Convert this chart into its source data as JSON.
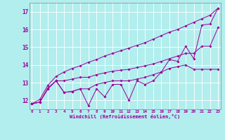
{
  "xlabel": "Windchill (Refroidissement éolien,°C)",
  "background_color": "#b2eeee",
  "grid_color": "#ffffff",
  "line_color": "#990099",
  "x_values": [
    0,
    1,
    2,
    3,
    4,
    5,
    6,
    7,
    8,
    9,
    10,
    11,
    12,
    13,
    14,
    15,
    16,
    17,
    18,
    19,
    20,
    21,
    22,
    23
  ],
  "line1": [
    11.8,
    11.9,
    12.65,
    13.1,
    12.45,
    12.5,
    12.65,
    11.7,
    12.65,
    12.2,
    12.9,
    12.9,
    12.0,
    13.1,
    12.9,
    13.1,
    13.6,
    14.3,
    14.2,
    15.05,
    14.35,
    16.25,
    16.3,
    17.2
  ],
  "line2": [
    11.8,
    11.9,
    12.65,
    13.1,
    12.45,
    12.5,
    12.65,
    12.65,
    12.9,
    13.0,
    13.1,
    13.1,
    13.1,
    13.2,
    13.3,
    13.45,
    13.6,
    13.8,
    13.9,
    14.0,
    13.75,
    13.75,
    13.75,
    13.75
  ],
  "line3": [
    11.8,
    11.9,
    12.7,
    13.1,
    13.1,
    13.2,
    13.3,
    13.3,
    13.45,
    13.55,
    13.65,
    13.7,
    13.75,
    13.85,
    13.95,
    14.05,
    14.2,
    14.35,
    14.5,
    14.65,
    14.65,
    15.05,
    15.05,
    16.1
  ],
  "line4": [
    11.8,
    12.05,
    12.85,
    13.35,
    13.6,
    13.8,
    13.95,
    14.15,
    14.3,
    14.5,
    14.65,
    14.8,
    14.95,
    15.1,
    15.25,
    15.45,
    15.65,
    15.85,
    16.0,
    16.2,
    16.4,
    16.6,
    16.8,
    17.2
  ],
  "ylim": [
    11.5,
    17.5
  ],
  "yticks": [
    12,
    13,
    14,
    15,
    16,
    17
  ],
  "xticks": [
    0,
    1,
    2,
    3,
    4,
    5,
    6,
    7,
    8,
    9,
    10,
    11,
    12,
    13,
    14,
    15,
    16,
    17,
    18,
    19,
    20,
    21,
    22,
    23
  ],
  "xlim": [
    -0.3,
    23.3
  ]
}
